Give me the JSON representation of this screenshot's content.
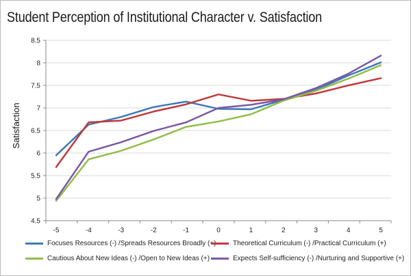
{
  "chart_data": {
    "type": "line",
    "title": "Student Perception of Institutional Character v. Satisfaction",
    "xlabel": "",
    "ylabel": "Satisfaction",
    "x": [
      -5,
      -4,
      -3,
      -2,
      -1,
      0,
      1,
      2,
      3,
      4,
      5
    ],
    "x_tick_labels": [
      "-5",
      "-4",
      "-3",
      "-2",
      "-1",
      "0",
      "1",
      "2",
      "3",
      "4",
      "5"
    ],
    "y_tick_labels": [
      "4.5",
      "5",
      "5.5",
      "6",
      "6.5",
      "7",
      "7.5",
      "8",
      "8.5"
    ],
    "ylim": [
      4.5,
      8.5
    ],
    "grid": "horizontal",
    "legend": "bottom",
    "series": [
      {
        "name": "Focuses Resources (-) /Spreads Resources Broadly (+)",
        "color": "#3d7ab8",
        "values": [
          5.95,
          6.63,
          6.8,
          7.02,
          7.14,
          6.98,
          6.97,
          7.18,
          7.4,
          7.72,
          8.01
        ]
      },
      {
        "name": "Theoretical Curriculum (-) /Practical Curriculum (+)",
        "color": "#c0393b",
        "values": [
          5.69,
          6.68,
          6.72,
          6.92,
          7.08,
          7.3,
          7.16,
          7.2,
          7.32,
          7.5,
          7.66
        ]
      },
      {
        "name": "Cautious About New Ideas (-) /Open to New Ideas (+)",
        "color": "#92bd4a",
        "values": [
          4.94,
          5.86,
          6.05,
          6.3,
          6.58,
          6.7,
          6.86,
          7.16,
          7.38,
          7.65,
          7.95
        ]
      },
      {
        "name": "Expects Self-sufficiency (-) /Nurturing and Supportive (+)",
        "color": "#7a58a3",
        "values": [
          4.98,
          6.03,
          6.24,
          6.49,
          6.68,
          7.0,
          7.07,
          7.19,
          7.44,
          7.76,
          8.16
        ]
      }
    ]
  }
}
